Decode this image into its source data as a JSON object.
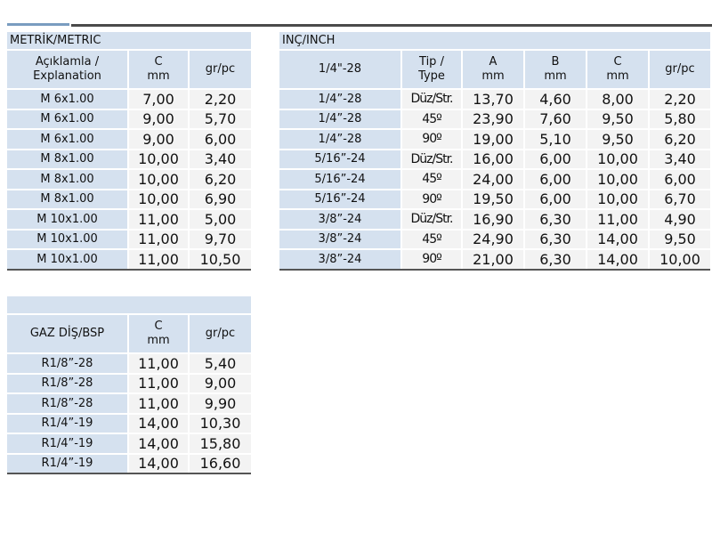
{
  "metric": {
    "title": "METRİK/METRIC",
    "headers": [
      "Açıklamla /\nExplanation",
      "C\nmm",
      "gr/pc"
    ],
    "rows": [
      [
        "M 6x1.00",
        "7,00",
        "2,20"
      ],
      [
        "M 6x1.00",
        "9,00",
        "5,70"
      ],
      [
        "M 6x1.00",
        "9,00",
        "6,00"
      ],
      [
        "M 8x1.00",
        "10,00",
        "3,40"
      ],
      [
        "M 8x1.00",
        "10,00",
        "6,20"
      ],
      [
        "M 8x1.00",
        "10,00",
        "6,90"
      ],
      [
        "M 10x1.00",
        "11,00",
        "5,00"
      ],
      [
        "M 10x1.00",
        "11,00",
        "9,70"
      ],
      [
        "M 10x1.00",
        "11,00",
        "10,50"
      ]
    ]
  },
  "inch": {
    "title": "INÇ/INCH",
    "headers": [
      "1/4\"-28",
      "Tip /\nType",
      "A\nmm",
      "B\nmm",
      "C\nmm",
      "gr/pc"
    ],
    "rows": [
      [
        "1/4”-28",
        "Düz/Str.",
        "13,70",
        "4,60",
        "8,00",
        "2,20"
      ],
      [
        "1/4”-28",
        "45º",
        "23,90",
        "7,60",
        "9,50",
        "5,80"
      ],
      [
        "1/4”-28",
        "90º",
        "19,00",
        "5,10",
        "9,50",
        "6,20"
      ],
      [
        "5/16”-24",
        "Düz/Str.",
        "16,00",
        "6,00",
        "10,00",
        "3,40"
      ],
      [
        "5/16”-24",
        "45º",
        "24,00",
        "6,00",
        "10,00",
        "6,00"
      ],
      [
        "5/16”-24",
        "90º",
        "19,50",
        "6,00",
        "10,00",
        "6,70"
      ],
      [
        "3/8”-24",
        "Düz/Str.",
        "16,90",
        "6,30",
        "11,00",
        "4,90"
      ],
      [
        "3/8”-24",
        "45º",
        "24,90",
        "6,30",
        "14,00",
        "9,50"
      ],
      [
        "3/8”-24",
        "90º",
        "21,00",
        "6,30",
        "14,00",
        "10,00"
      ]
    ]
  },
  "bsp": {
    "title": "",
    "headers": [
      "GAZ DİŞ/BSP",
      "C\nmm",
      "gr/pc"
    ],
    "rows": [
      [
        "R1/8”-28",
        "11,00",
        "5,40"
      ],
      [
        "R1/8”-28",
        "11,00",
        "9,00"
      ],
      [
        "R1/8”-28",
        "11,00",
        "9,90"
      ],
      [
        "R1/4”-19",
        "14,00",
        "10,30"
      ],
      [
        "R1/4”-19",
        "14,00",
        "15,80"
      ],
      [
        "R1/4”-19",
        "14,00",
        "16,60"
      ]
    ]
  }
}
